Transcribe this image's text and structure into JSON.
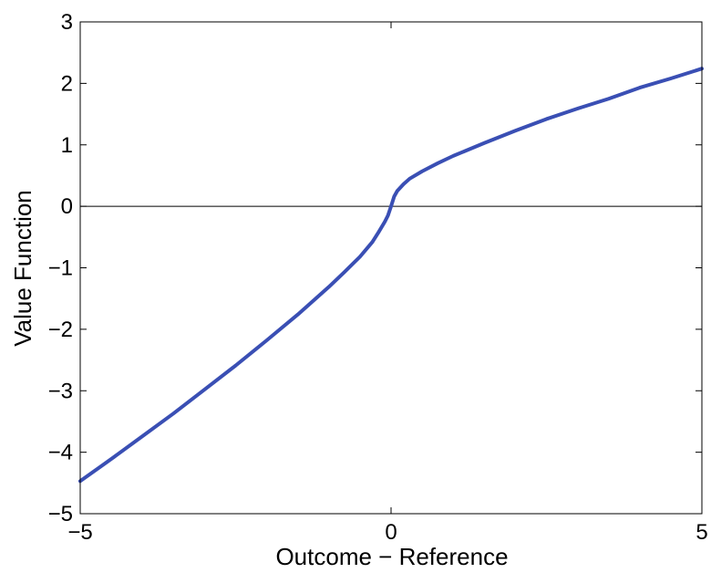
{
  "chart_data": {
    "type": "line",
    "title": "",
    "xlabel": "Outcome − Reference",
    "ylabel": "Value Function",
    "xlim": [
      -5,
      5
    ],
    "ylim": [
      -5,
      3
    ],
    "x_ticks": [
      -5,
      0,
      5
    ],
    "x_tick_labels": [
      "−5",
      "0",
      "5"
    ],
    "y_ticks": [
      -5,
      -4,
      -3,
      -2,
      -1,
      0,
      1,
      2,
      3
    ],
    "y_tick_labels": [
      "−5",
      "−4",
      "−3",
      "−2",
      "−1",
      "0",
      "1",
      "2",
      "3"
    ],
    "grid": false,
    "legend": "none",
    "zero_line": true,
    "series": [
      {
        "color": "#3a4fb4",
        "x": [
          -5,
          -4.5,
          -4,
          -3.5,
          -3,
          -2.5,
          -2,
          -1.5,
          -1,
          -0.75,
          -0.5,
          -0.3,
          -0.2,
          -0.1,
          -0.05,
          0,
          0.05,
          0.1,
          0.2,
          0.3,
          0.5,
          0.75,
          1,
          1.5,
          2,
          2.5,
          3,
          3.5,
          4,
          4.5,
          5
        ],
        "y": [
          -4.47,
          -4.11,
          -3.74,
          -3.37,
          -2.98,
          -2.59,
          -2.18,
          -1.76,
          -1.31,
          -1.07,
          -0.82,
          -0.58,
          -0.42,
          -0.25,
          -0.15,
          0,
          0.16,
          0.25,
          0.36,
          0.45,
          0.57,
          0.7,
          0.82,
          1.03,
          1.23,
          1.42,
          1.59,
          1.75,
          1.93,
          2.08,
          2.24
        ]
      }
    ]
  }
}
